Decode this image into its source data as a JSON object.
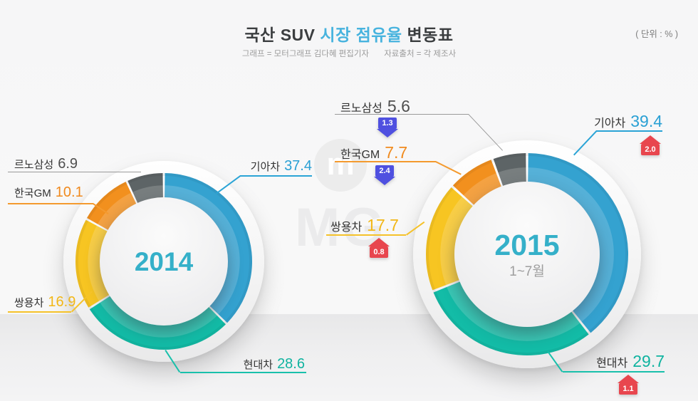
{
  "header": {
    "title": {
      "part1": "국산 SUV ",
      "highlight": "시장 점유율 ",
      "part3": "변동표"
    },
    "credit": "그래프 = 모터그래프 김다혜 편집기자",
    "source": "자료출처 = 각 제조사",
    "unit_note": "( 단위 : % )"
  },
  "watermark": {
    "icon_letter": "m",
    "text": "MG"
  },
  "accent_colors": {
    "increase": "#e8464e",
    "decrease": "#4f50e0",
    "title_highlight": "#47b3de"
  },
  "chart_data": [
    {
      "type": "pie",
      "title": "2014",
      "center_label": "2014",
      "center_sublabel": "",
      "unit": "%",
      "legend_position": "callouts",
      "segments": [
        {
          "label": "기아차",
          "value": 37.4,
          "color": "#34a2d0",
          "text_color": "#2aa0d4"
        },
        {
          "label": "현대차",
          "value": 28.6,
          "color": "#13bca7",
          "text_color": "#0fb3a0"
        },
        {
          "label": "쌍용차",
          "value": 16.9,
          "color": "#f7c522",
          "text_color": "#f2b717"
        },
        {
          "label": "한국GM",
          "value": 10.1,
          "color": "#f2901e",
          "text_color": "#f08a1e"
        },
        {
          "label": "르노삼성",
          "value": 6.9,
          "color": "#5d6466",
          "text_color": "#4f4f4f"
        }
      ]
    },
    {
      "type": "pie",
      "title": "2015 1~7월",
      "center_label": "2015",
      "center_sublabel": "1~7월",
      "unit": "%",
      "legend_position": "callouts",
      "segments": [
        {
          "label": "기아차",
          "value": 39.4,
          "delta": "2.0",
          "delta_dir": "up",
          "color": "#34a2d0",
          "text_color": "#2aa0d4"
        },
        {
          "label": "현대차",
          "value": 29.7,
          "delta": "1.1",
          "delta_dir": "up",
          "color": "#13bca7",
          "text_color": "#0fb3a0"
        },
        {
          "label": "쌍용차",
          "value": 17.7,
          "delta": "0.8",
          "delta_dir": "up",
          "color": "#f7c522",
          "text_color": "#f2b717"
        },
        {
          "label": "한국GM",
          "value": 7.7,
          "delta": "2.4",
          "delta_dir": "down",
          "color": "#f2901e",
          "text_color": "#f08a1e"
        },
        {
          "label": "르노삼성",
          "value": 5.6,
          "delta": "1.3",
          "delta_dir": "down",
          "color": "#5d6466",
          "text_color": "#4f4f4f"
        }
      ]
    }
  ]
}
